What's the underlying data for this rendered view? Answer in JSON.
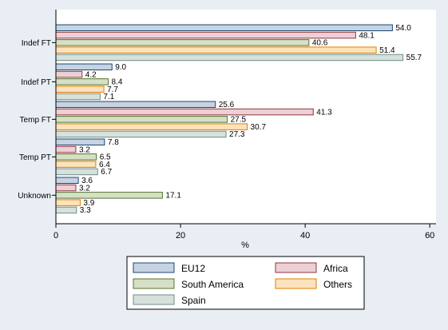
{
  "chart_data": {
    "type": "bar",
    "orientation": "horizontal",
    "categories": [
      "Indef FT",
      "Indef PT",
      "Temp FT",
      "Temp PT",
      "Unknown"
    ],
    "series": [
      {
        "name": "EU12",
        "values": [
          54.0,
          9.0,
          25.6,
          7.8,
          3.6
        ],
        "fill": "#c6d3e3",
        "stroke": "#1a476f"
      },
      {
        "name": "Africa",
        "values": [
          48.1,
          4.2,
          41.3,
          3.2,
          3.2
        ],
        "fill": "#ecd0d6",
        "stroke": "#90353b"
      },
      {
        "name": "South America",
        "values": [
          40.6,
          8.4,
          27.5,
          6.5,
          17.1
        ],
        "fill": "#d5e0c6",
        "stroke": "#55752f"
      },
      {
        "name": "Others",
        "values": [
          51.4,
          7.7,
          30.7,
          6.4,
          3.9
        ],
        "fill": "#fde2bc",
        "stroke": "#e37e00"
      },
      {
        "name": "Spain",
        "values": [
          55.7,
          7.1,
          27.3,
          6.7,
          3.3
        ],
        "fill": "#d7e1dc",
        "stroke": "#6e8e84"
      }
    ],
    "value_labels": [
      [
        "54.0",
        "9.0",
        "25.6",
        "7.8",
        "3.6"
      ],
      [
        "48.1",
        "4.2",
        "41.3",
        "3.2",
        "3.2"
      ],
      [
        "40.6",
        "8.4",
        "27.5",
        "6.5",
        "17.1"
      ],
      [
        "51.4",
        "7.7",
        "30.7",
        "6.4",
        "3.9"
      ],
      [
        "55.7",
        "7.1",
        "27.3",
        "6.7",
        "3.3"
      ]
    ],
    "xlabel": "%",
    "xlim": [
      0,
      61
    ],
    "xticks": [
      0,
      20,
      40,
      60
    ],
    "xtick_labels": [
      "0",
      "20",
      "40",
      "60"
    ],
    "grid": false,
    "legend_position": "bottom",
    "colors": {
      "background": "#e8eef4",
      "plot_bg": "#ffffff",
      "text": "#000000"
    }
  }
}
